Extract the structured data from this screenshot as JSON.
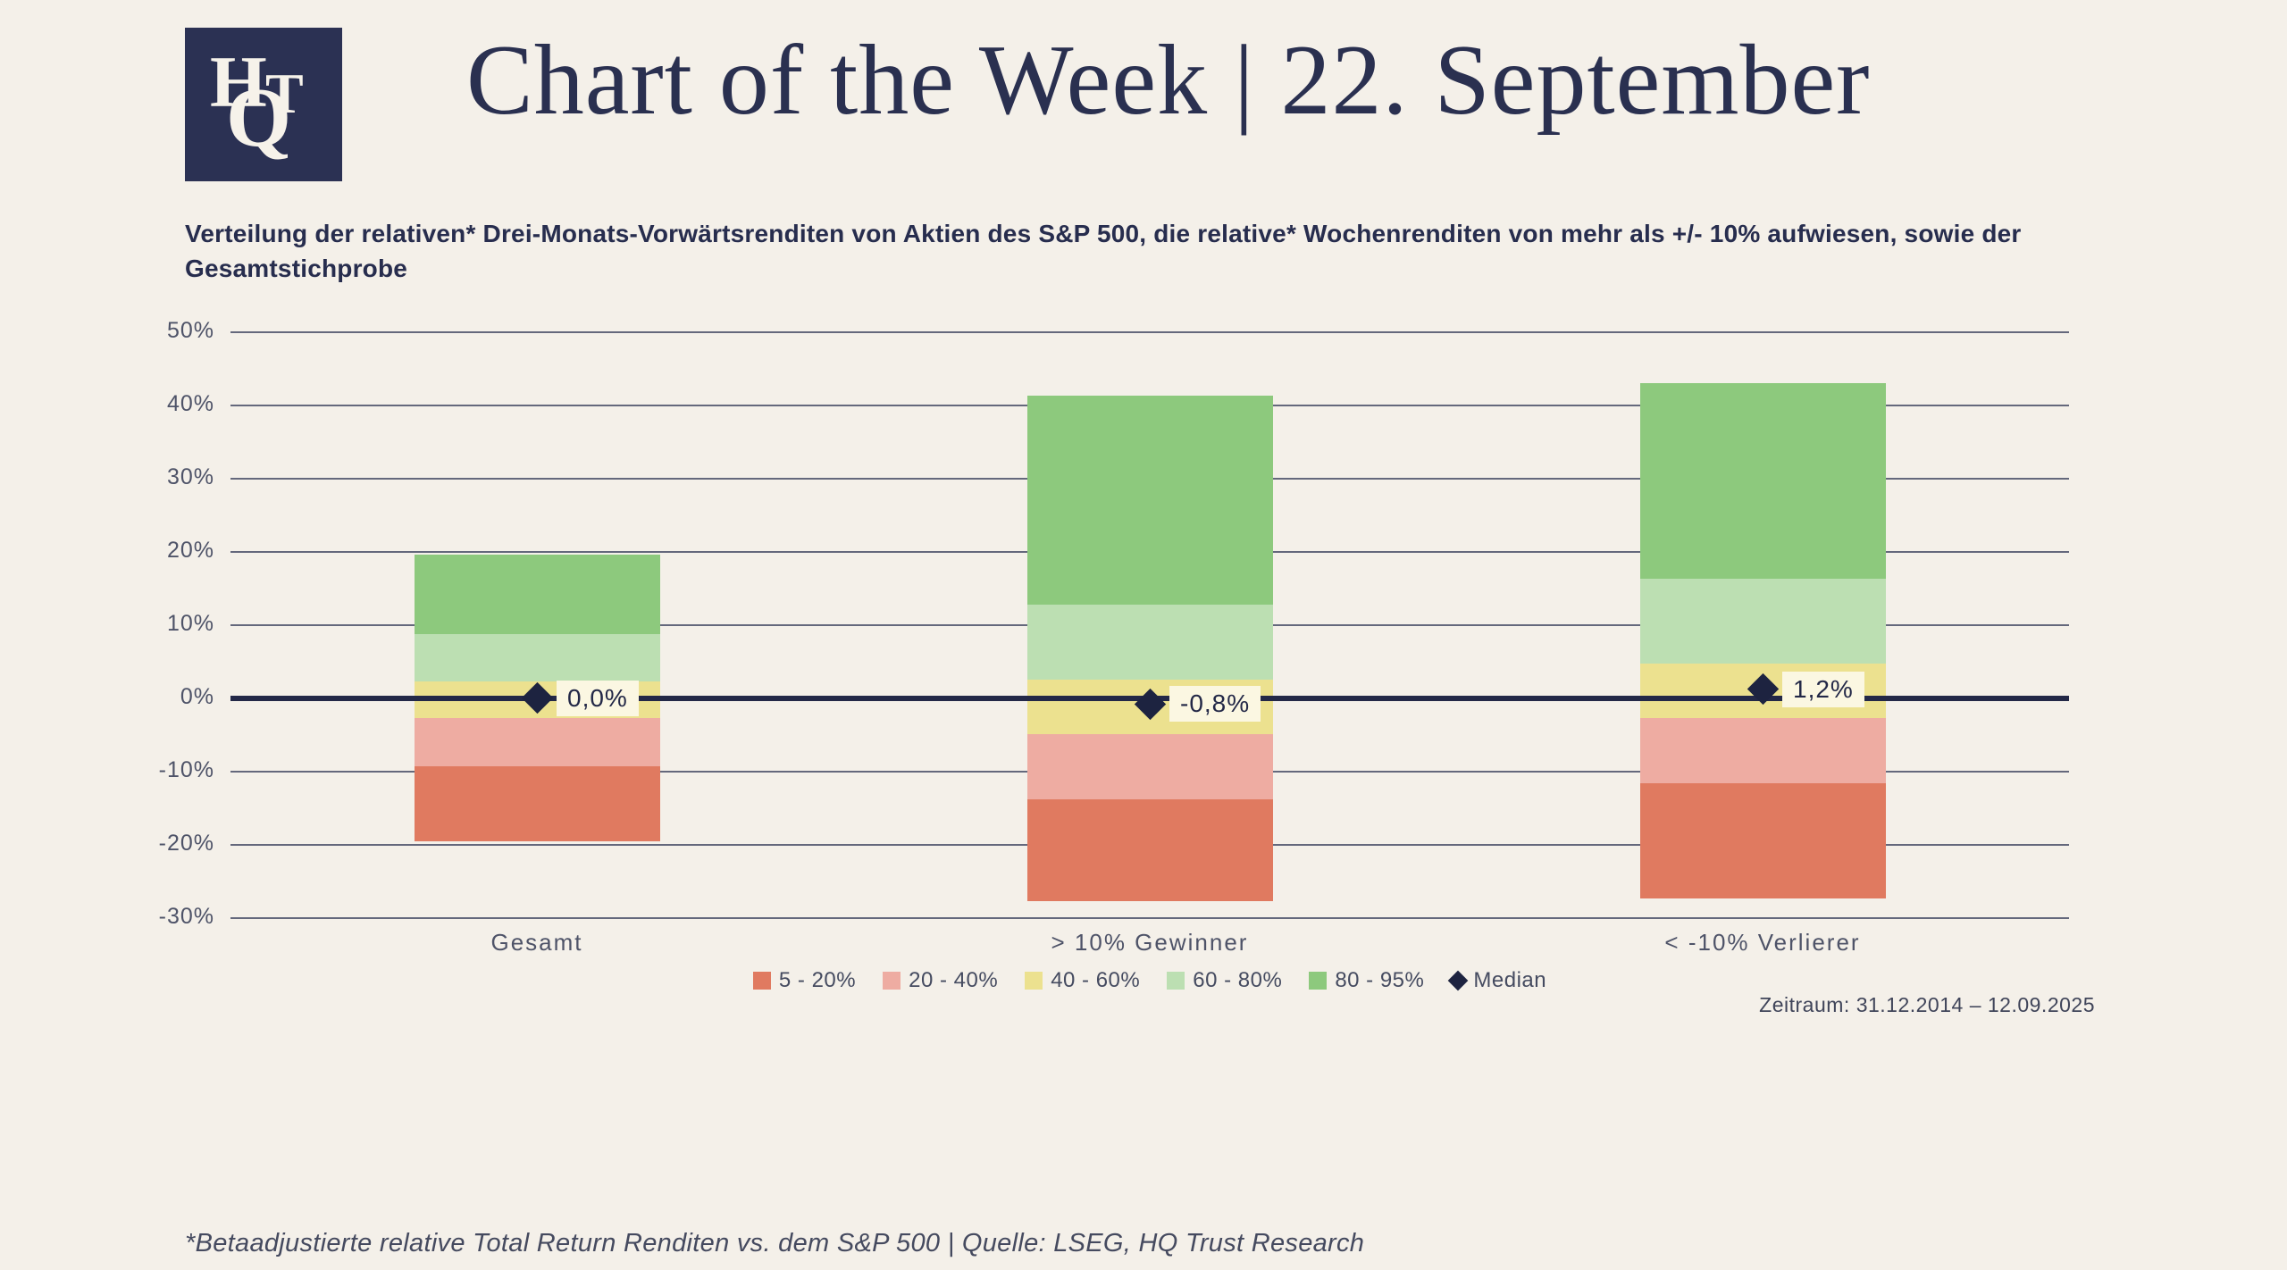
{
  "page": {
    "background": "#f4f0e9",
    "accent_navy": "#2a3050"
  },
  "logo": {
    "bg": "#2b3153",
    "letters": {
      "h": "H",
      "q": "Q",
      "t": "T"
    }
  },
  "header": {
    "title": "Chart of the Week | 22. September"
  },
  "chart_data": {
    "type": "bar",
    "subtype": "stacked_percentile_bands",
    "title": "Verteilung der relativen* Drei-Monats-Vorwärtsrenditen von Aktien des S&P 500, die relative* Wochenrenditen von mehr als +/- 10% aufwiesen, sowie der Gesamtstichprobe",
    "categories": [
      "Gesamt",
      "> 10% Gewinner",
      "< -10% Verlierer"
    ],
    "y_axis": {
      "unit": "%",
      "grid": true,
      "ticks": [
        {
          "v": 50,
          "label": "50%"
        },
        {
          "v": 40,
          "label": "40%"
        },
        {
          "v": 30,
          "label": "30%"
        },
        {
          "v": 20,
          "label": "20%"
        },
        {
          "v": 10,
          "label": "10%"
        },
        {
          "v": 0,
          "label": "0%"
        },
        {
          "v": -10,
          "label": "-10%"
        },
        {
          "v": -20,
          "label": "-20%"
        },
        {
          "v": -30,
          "label": "-30%"
        }
      ]
    },
    "ylim": [
      -30,
      50
    ],
    "bands": [
      {
        "key_lo": "p5",
        "key_hi": "p20",
        "label": "5 - 20%",
        "color": "#e07a60"
      },
      {
        "key_lo": "p20",
        "key_hi": "p40",
        "label": "20 - 40%",
        "color": "#eeaca2"
      },
      {
        "key_lo": "p40",
        "key_hi": "p60",
        "label": "40 - 60%",
        "color": "#ece18f"
      },
      {
        "key_lo": "p60",
        "key_hi": "p80",
        "label": "60 - 80%",
        "color": "#bcdfb2"
      },
      {
        "key_lo": "p80",
        "key_hi": "p95",
        "label": "80 - 95%",
        "color": "#8dc97d"
      }
    ],
    "bars": [
      {
        "p5": -19.6,
        "p20": -9.3,
        "p40": -2.8,
        "p60": 2.2,
        "p80": 8.7,
        "p95": 19.6,
        "median": 0.0,
        "median_label": "0,0%"
      },
      {
        "p5": -27.7,
        "p20": -13.8,
        "p40": -4.9,
        "p60": 2.5,
        "p80": 12.8,
        "p95": 41.3,
        "median": -0.8,
        "median_label": "-0,8%"
      },
      {
        "p5": -27.4,
        "p20": -11.6,
        "p40": -2.7,
        "p60": 4.7,
        "p80": 16.3,
        "p95": 43.0,
        "median": 1.2,
        "median_label": "1,2%"
      }
    ],
    "median_legend_label": "Median",
    "marker_color": "#1d2340",
    "median_label_bg": "#fbf7e2",
    "legend_position": "bottom-center"
  },
  "footer": {
    "period": "Zeitraum: 31.12.2014 – 12.09.2025",
    "note": "*Betaadjustierte relative Total Return Renditen vs. dem S&P 500 | Quelle: LSEG, HQ Trust Research"
  }
}
